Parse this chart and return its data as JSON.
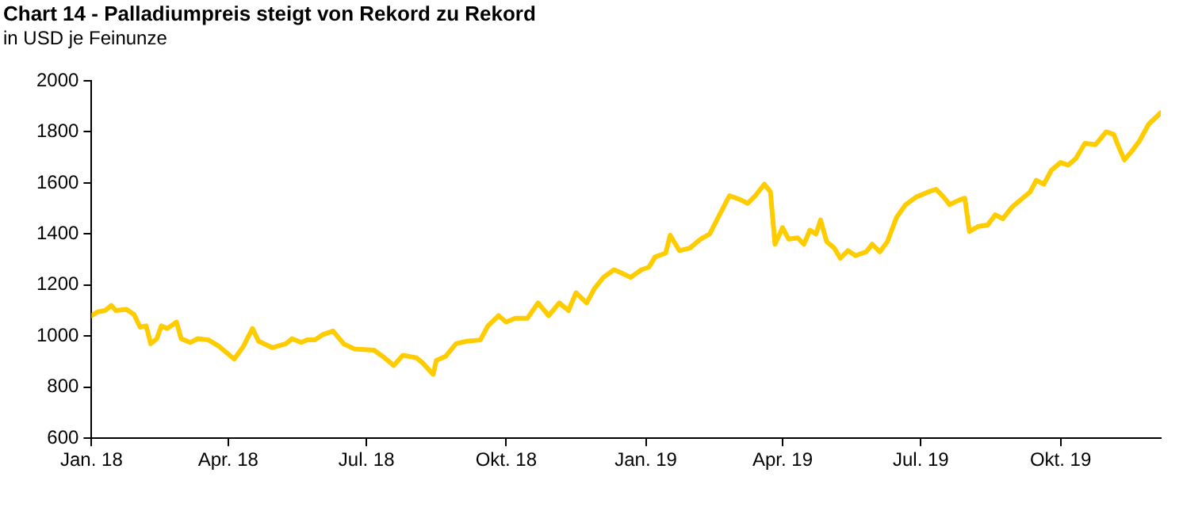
{
  "chart_data": {
    "type": "line",
    "title": "Chart 14 - Palladiumpreis steigt von Rekord zu Rekord",
    "subtitle": "in USD je Feinunze",
    "x": [
      "2018-01-01",
      "2018-01-05",
      "2018-01-10",
      "2018-01-14",
      "2018-01-17",
      "2018-01-24",
      "2018-01-29",
      "2018-02-02",
      "2018-02-06",
      "2018-02-09",
      "2018-02-13",
      "2018-02-16",
      "2018-02-20",
      "2018-02-26",
      "2018-03-01",
      "2018-03-07",
      "2018-03-12",
      "2018-03-19",
      "2018-03-26",
      "2018-04-05",
      "2018-04-11",
      "2018-04-17",
      "2018-04-21",
      "2018-04-30",
      "2018-05-09",
      "2018-05-13",
      "2018-05-19",
      "2018-05-23",
      "2018-05-28",
      "2018-06-02",
      "2018-06-09",
      "2018-06-16",
      "2018-06-23",
      "2018-07-06",
      "2018-07-13",
      "2018-07-19",
      "2018-07-25",
      "2018-08-03",
      "2018-08-07",
      "2018-08-14",
      "2018-08-16",
      "2018-08-22",
      "2018-08-29",
      "2018-09-05",
      "2018-09-14",
      "2018-09-19",
      "2018-09-26",
      "2018-10-01",
      "2018-10-07",
      "2018-10-15",
      "2018-10-22",
      "2018-10-29",
      "2018-11-05",
      "2018-11-11",
      "2018-11-16",
      "2018-11-23",
      "2018-11-28",
      "2018-12-04",
      "2018-12-11",
      "2018-12-15",
      "2018-12-22",
      "2018-12-29",
      "2019-01-03",
      "2019-01-07",
      "2019-01-14",
      "2019-01-17",
      "2019-01-23",
      "2019-01-30",
      "2019-02-06",
      "2019-02-12",
      "2019-02-18",
      "2019-02-25",
      "2019-03-04",
      "2019-03-09",
      "2019-03-14",
      "2019-03-20",
      "2019-03-24",
      "2019-03-27",
      "2019-04-01",
      "2019-04-05",
      "2019-04-11",
      "2019-04-15",
      "2019-04-19",
      "2019-04-23",
      "2019-04-26",
      "2019-04-30",
      "2019-05-05",
      "2019-05-09",
      "2019-05-14",
      "2019-05-19",
      "2019-05-26",
      "2019-05-30",
      "2019-06-04",
      "2019-06-09",
      "2019-06-15",
      "2019-06-21",
      "2019-06-28",
      "2019-07-06",
      "2019-07-11",
      "2019-07-16",
      "2019-07-20",
      "2019-07-27",
      "2019-07-30",
      "2019-08-02",
      "2019-08-08",
      "2019-08-14",
      "2019-08-19",
      "2019-08-24",
      "2019-08-30",
      "2019-09-06",
      "2019-09-11",
      "2019-09-15",
      "2019-09-20",
      "2019-09-25",
      "2019-10-01",
      "2019-10-06",
      "2019-10-11",
      "2019-10-17",
      "2019-10-24",
      "2019-10-31",
      "2019-11-05",
      "2019-11-08",
      "2019-11-12",
      "2019-11-17",
      "2019-11-22",
      "2019-11-28",
      "2019-12-06"
    ],
    "series": [
      {
        "color": "#ffcc00",
        "values": [
          1080,
          1095,
          1100,
          1120,
          1100,
          1105,
          1085,
          1035,
          1040,
          970,
          990,
          1040,
          1030,
          1055,
          990,
          975,
          990,
          985,
          960,
          910,
          960,
          1030,
          980,
          955,
          970,
          990,
          975,
          985,
          985,
          1005,
          1020,
          970,
          950,
          945,
          915,
          885,
          925,
          915,
          895,
          850,
          905,
          920,
          970,
          980,
          985,
          1040,
          1080,
          1055,
          1070,
          1070,
          1130,
          1080,
          1130,
          1100,
          1170,
          1130,
          1185,
          1230,
          1260,
          1250,
          1230,
          1260,
          1270,
          1310,
          1325,
          1395,
          1335,
          1345,
          1380,
          1400,
          1470,
          1550,
          1535,
          1520,
          1550,
          1595,
          1565,
          1360,
          1425,
          1380,
          1385,
          1360,
          1415,
          1400,
          1455,
          1370,
          1345,
          1305,
          1335,
          1315,
          1330,
          1360,
          1330,
          1370,
          1465,
          1515,
          1545,
          1565,
          1575,
          1545,
          1515,
          1535,
          1540,
          1410,
          1430,
          1435,
          1475,
          1460,
          1505,
          1540,
          1565,
          1610,
          1595,
          1650,
          1680,
          1670,
          1695,
          1755,
          1750,
          1800,
          1790,
          1745,
          1690,
          1725,
          1765,
          1830,
          1875
        ]
      }
    ],
    "xlim": [
      "2018-01-01",
      "2019-12-06"
    ],
    "xticks": [
      {
        "value": "2018-01-01",
        "label": "Jan. 18"
      },
      {
        "value": "2018-04-01",
        "label": "Apr. 18"
      },
      {
        "value": "2018-07-01",
        "label": "Jul. 18"
      },
      {
        "value": "2018-10-01",
        "label": "Okt. 18"
      },
      {
        "value": "2019-01-01",
        "label": "Jan. 19"
      },
      {
        "value": "2019-04-01",
        "label": "Apr. 19"
      },
      {
        "value": "2019-07-01",
        "label": "Jul. 19"
      },
      {
        "value": "2019-10-01",
        "label": "Okt. 19"
      }
    ],
    "ylim": [
      600,
      2000
    ],
    "yticks": [
      600,
      800,
      1000,
      1200,
      1400,
      1600,
      1800,
      2000
    ],
    "grid": false,
    "legend": false,
    "marker": "none",
    "line_style": "solid"
  }
}
